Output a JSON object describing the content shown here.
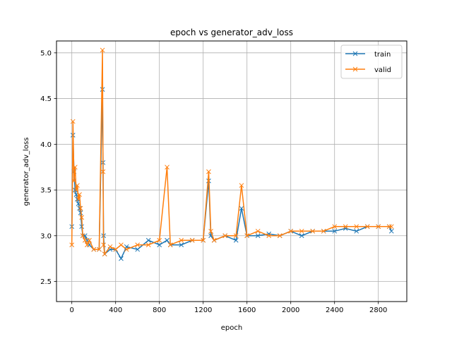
{
  "chart_data": {
    "type": "line",
    "title": "epoch vs generator_adv_loss",
    "xlabel": "epoch",
    "ylabel": "generator_adv_loss",
    "xlim": [
      -140,
      3060
    ],
    "ylim": [
      2.28,
      5.13
    ],
    "xticks": [
      0,
      400,
      800,
      1200,
      1600,
      2000,
      2400,
      2800
    ],
    "xtick_labels": [
      "0",
      "400",
      "800",
      "1200",
      "1600",
      "2000",
      "2400",
      "2800"
    ],
    "yticks": [
      2.5,
      3.0,
      3.5,
      4.0,
      4.5,
      5.0
    ],
    "ytick_labels": [
      "2.5",
      "3.0",
      "3.5",
      "4.0",
      "4.5",
      "5.0"
    ],
    "grid": true,
    "legend_position": "upper right",
    "marker": "x",
    "x": [
      0,
      10,
      20,
      30,
      40,
      50,
      60,
      70,
      80,
      90,
      100,
      120,
      140,
      160,
      200,
      250,
      280,
      285,
      290,
      300,
      350,
      400,
      450,
      500,
      600,
      700,
      800,
      870,
      900,
      1000,
      1100,
      1200,
      1250,
      1270,
      1300,
      1400,
      1500,
      1550,
      1600,
      1700,
      1800,
      1900,
      2000,
      2100,
      2200,
      2300,
      2400,
      2500,
      2600,
      2700,
      2800,
      2900,
      2920
    ],
    "series": [
      {
        "name": "train",
        "color": "#1f77b4",
        "values": [
          3.1,
          4.1,
          3.7,
          3.5,
          3.45,
          3.4,
          3.35,
          3.3,
          3.25,
          3.1,
          3.0,
          3.0,
          2.95,
          2.9,
          2.85,
          2.85,
          4.6,
          3.8,
          3.0,
          2.8,
          2.85,
          2.85,
          2.75,
          2.88,
          2.85,
          2.95,
          2.9,
          2.95,
          2.9,
          2.9,
          2.95,
          2.95,
          3.6,
          3.0,
          2.95,
          3.0,
          2.95,
          3.3,
          3.0,
          3.0,
          3.02,
          3.0,
          3.05,
          3.0,
          3.05,
          3.05,
          3.05,
          3.08,
          3.05,
          3.1,
          3.1,
          3.1,
          3.05
        ]
      },
      {
        "name": "valid",
        "color": "#ff7f0e",
        "values": [
          2.9,
          4.25,
          3.6,
          3.75,
          3.5,
          3.55,
          3.4,
          3.45,
          3.3,
          3.2,
          3.0,
          2.95,
          2.9,
          2.95,
          2.85,
          2.85,
          5.03,
          3.7,
          2.9,
          2.8,
          2.88,
          2.85,
          2.9,
          2.85,
          2.9,
          2.9,
          2.95,
          3.75,
          2.9,
          2.95,
          2.95,
          2.95,
          3.7,
          3.05,
          2.95,
          3.0,
          3.0,
          3.55,
          3.0,
          3.05,
          3.0,
          3.0,
          3.05,
          3.05,
          3.05,
          3.05,
          3.1,
          3.1,
          3.1,
          3.1,
          3.1,
          3.1,
          3.1
        ]
      }
    ]
  }
}
